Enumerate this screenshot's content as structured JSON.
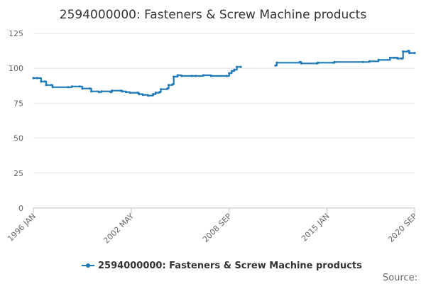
{
  "chart_data": {
    "type": "line",
    "title": "2594000000: Fasteners & Screw Machine products",
    "xlabel": "",
    "ylabel": "",
    "ylim": [
      0,
      125
    ],
    "yticks": [
      "0",
      "25",
      "50",
      "75",
      "100",
      "125"
    ],
    "xlim": [
      "1996-01",
      "2020-09"
    ],
    "xticks": [
      {
        "label": "1996 JAN",
        "date": "1996-01"
      },
      {
        "label": "2002 MAY",
        "date": "2002-05"
      },
      {
        "label": "2008 SEP",
        "date": "2008-09"
      },
      {
        "label": "2015 JAN",
        "date": "2015-01"
      },
      {
        "label": "2020 SEP",
        "date": "2020-09"
      }
    ],
    "grid": "horizontal",
    "legend_position": "bottom",
    "series": [
      {
        "name": "2594000000: Fasteners & Screw Machine products",
        "color": "#1f7ab8",
        "points": [
          [
            "1996-01",
            93
          ],
          [
            "1996-04",
            93
          ],
          [
            "1996-07",
            90.5
          ],
          [
            "1996-10",
            90.5
          ],
          [
            "1996-11",
            88
          ],
          [
            "1997-03",
            88
          ],
          [
            "1997-04",
            86.5
          ],
          [
            "1998-04",
            86.5
          ],
          [
            "1998-07",
            87
          ],
          [
            "1999-01",
            87
          ],
          [
            "1999-03",
            85.5
          ],
          [
            "1999-09",
            85.5
          ],
          [
            "1999-10",
            83.5
          ],
          [
            "2000-04",
            83
          ],
          [
            "2000-06",
            83.5
          ],
          [
            "2001-01",
            83
          ],
          [
            "2001-02",
            84
          ],
          [
            "2001-09",
            84
          ],
          [
            "2001-10",
            83.5
          ],
          [
            "2002-01",
            83
          ],
          [
            "2002-04",
            82.5
          ],
          [
            "2002-10",
            82.5
          ],
          [
            "2002-11",
            81.5
          ],
          [
            "2003-02",
            81
          ],
          [
            "2003-06",
            80.5
          ],
          [
            "2003-10",
            81.5
          ],
          [
            "2003-12",
            82.5
          ],
          [
            "2004-03",
            83
          ],
          [
            "2004-04",
            85
          ],
          [
            "2004-09",
            85.5
          ],
          [
            "2004-10",
            88
          ],
          [
            "2005-01",
            88.5
          ],
          [
            "2005-02",
            94
          ],
          [
            "2005-05",
            95
          ],
          [
            "2005-08",
            94.5
          ],
          [
            "2006-04",
            94.5
          ],
          [
            "2006-07",
            94.5
          ],
          [
            "2007-01",
            95
          ],
          [
            "2007-07",
            94.5
          ],
          [
            "2008-07",
            94.5
          ],
          [
            "2008-09",
            96.5
          ],
          [
            "2008-11",
            98
          ],
          [
            "2009-01",
            99
          ],
          [
            "2009-03",
            101
          ],
          [
            "2009-06",
            101
          ],
          null,
          [
            "2011-09",
            102
          ],
          [
            "2011-10",
            104
          ],
          [
            "2013-04",
            104.5
          ],
          [
            "2013-05",
            103.5
          ],
          [
            "2014-05",
            103.5
          ],
          [
            "2014-06",
            104
          ],
          [
            "2015-06",
            104
          ],
          [
            "2015-07",
            104.5
          ],
          [
            "2017-05",
            104.5
          ],
          [
            "2017-10",
            105
          ],
          [
            "2018-05",
            106
          ],
          [
            "2019-02",
            107.5
          ],
          [
            "2019-05",
            107.5
          ],
          [
            "2019-07",
            107.5
          ],
          [
            "2019-08",
            107
          ],
          [
            "2019-11",
            107
          ],
          [
            "2019-12",
            112
          ],
          [
            "2020-04",
            112.5
          ],
          [
            "2020-05",
            111
          ],
          [
            "2020-09",
            111
          ]
        ]
      }
    ]
  },
  "source_label": "Source:"
}
